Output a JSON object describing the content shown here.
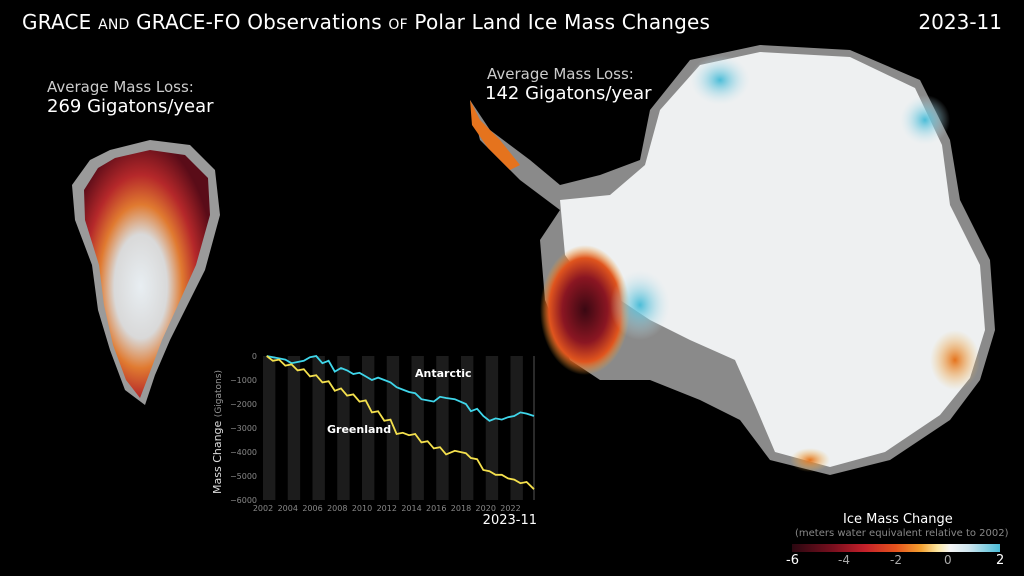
{
  "header": {
    "title_parts": [
      "GRACE ",
      "and",
      " GRACE-FO Observations ",
      "of",
      " Polar Land Ice Mass Changes"
    ],
    "date": "2023-11"
  },
  "greenland": {
    "label": "Average Mass Loss:",
    "value": "269 Gigatons/year"
  },
  "antarctica": {
    "label": "Average Mass Loss:",
    "value": "142 Gigatons/year"
  },
  "colorbar": {
    "title": "Ice Mass Change",
    "subtitle": "(meters water equivalent relative to 2002)",
    "ticks": [
      "-6",
      "-4",
      "-2",
      "0",
      "2"
    ],
    "range": [
      -6,
      2
    ],
    "colors": [
      "#2a0710",
      "#7a0f1e",
      "#c4202a",
      "#e5531d",
      "#f3a030",
      "#f6f6f6",
      "#4bbdd8"
    ]
  },
  "chart_data": {
    "type": "line",
    "ylabel": "Mass Change",
    "ylabel_unit": "(Gigatons)",
    "date_label": "2023-11",
    "xlim": [
      2002,
      2023.9
    ],
    "ylim": [
      -6000,
      0
    ],
    "x_ticks": [
      "2002",
      "2004",
      "2006",
      "2008",
      "2010",
      "2012",
      "2014",
      "2016",
      "2018",
      "2020",
      "2022"
    ],
    "y_ticks": [
      "0",
      "−1000",
      "−2000",
      "−3000",
      "−4000",
      "−5000",
      "−6000"
    ],
    "series": [
      {
        "name": "Antarctic",
        "color": "#3fd6ea",
        "x": [
          2002.3,
          2002.8,
          2003.3,
          2003.8,
          2004.3,
          2004.8,
          2005.3,
          2005.8,
          2006.3,
          2006.8,
          2007.3,
          2007.8,
          2008.3,
          2008.8,
          2009.3,
          2009.8,
          2010.3,
          2010.8,
          2011.3,
          2011.8,
          2012.3,
          2012.8,
          2013.3,
          2013.8,
          2014.3,
          2014.8,
          2015.3,
          2015.8,
          2016.3,
          2016.8,
          2017.5,
          2018.4,
          2018.8,
          2019.3,
          2019.8,
          2020.3,
          2020.8,
          2021.3,
          2021.8,
          2022.3,
          2022.8,
          2023.3,
          2023.9
        ],
        "y": [
          0,
          -50,
          -100,
          -150,
          -300,
          -250,
          -200,
          -50,
          0,
          -300,
          -200,
          -650,
          -500,
          -600,
          -750,
          -700,
          -850,
          -1000,
          -900,
          -1000,
          -1100,
          -1300,
          -1400,
          -1500,
          -1550,
          -1800,
          -1850,
          -1900,
          -1700,
          -1750,
          -1800,
          -2000,
          -2300,
          -2200,
          -2500,
          -2700,
          -2600,
          -2650,
          -2550,
          -2500,
          -2350,
          -2400,
          -2500
        ]
      },
      {
        "name": "Greenland",
        "color": "#f4e04d",
        "x": [
          2002.3,
          2002.8,
          2003.3,
          2003.8,
          2004.3,
          2004.8,
          2005.3,
          2005.8,
          2006.3,
          2006.8,
          2007.3,
          2007.8,
          2008.3,
          2008.8,
          2009.3,
          2009.8,
          2010.3,
          2010.8,
          2011.3,
          2011.8,
          2012.3,
          2012.8,
          2013.3,
          2013.8,
          2014.3,
          2014.8,
          2015.3,
          2015.8,
          2016.3,
          2016.8,
          2017.5,
          2018.4,
          2018.8,
          2019.3,
          2019.8,
          2020.3,
          2020.8,
          2021.3,
          2021.8,
          2022.3,
          2022.8,
          2023.3,
          2023.9
        ],
        "y": [
          0,
          -200,
          -150,
          -400,
          -350,
          -600,
          -550,
          -850,
          -800,
          -1100,
          -1050,
          -1450,
          -1350,
          -1650,
          -1600,
          -1900,
          -1850,
          -2350,
          -2300,
          -2700,
          -2650,
          -3250,
          -3200,
          -3300,
          -3250,
          -3600,
          -3550,
          -3850,
          -3800,
          -4100,
          -3950,
          -4050,
          -4250,
          -4300,
          -4750,
          -4800,
          -4950,
          -4950,
          -5100,
          -5150,
          -5300,
          -5250,
          -5550
        ]
      }
    ]
  }
}
